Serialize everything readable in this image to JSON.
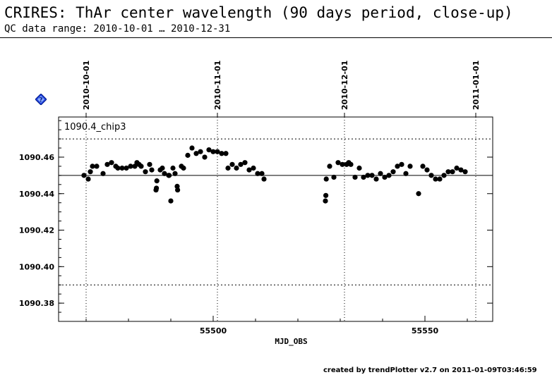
{
  "header": {
    "title": "CRIRES: ThAr center wavelength (90 days period, close-up)",
    "subtitle": "QC data range: 2010-10-01 … 2010-12-31"
  },
  "help_icon": "help-diamond-icon",
  "footer": {
    "text": "created by trendPlotter v2.7 on 2011-01-09T03:46:59"
  },
  "chart_data": {
    "type": "scatter",
    "panel_label": "1090.4_chip3",
    "xlabel": "MJD_OBS",
    "ylabel": "",
    "xlim": [
      55463.5,
      55566.0
    ],
    "ylim": [
      1090.37,
      1090.482
    ],
    "x_ticks": [
      55500,
      55550
    ],
    "y_ticks": [
      1090.38,
      1090.4,
      1090.42,
      1090.44,
      1090.46
    ],
    "y_tick_labels": [
      "1090.38",
      "1090.40",
      "1090.42",
      "1090.44",
      "1090.46"
    ],
    "reference_line": 1090.45,
    "threshold_lines": [
      1090.47,
      1090.39
    ],
    "date_markers": [
      {
        "mjd": 55470,
        "label": "2010-10-01"
      },
      {
        "mjd": 55501,
        "label": "2010-11-01"
      },
      {
        "mjd": 55531,
        "label": "2010-12-01"
      },
      {
        "mjd": 55562,
        "label": "2011-01-01"
      }
    ],
    "marker_color": "#000000",
    "grid": false,
    "x": [
      55469.5,
      55470.5,
      55471.0,
      55471.5,
      55472.5,
      55474.0,
      55475.0,
      55476.0,
      55477.0,
      55477.5,
      55478.5,
      55479.5,
      55480.5,
      55481.5,
      55482.0,
      55482.5,
      55483.0,
      55484.0,
      55485.0,
      55485.5,
      55486.5,
      55486.6,
      55486.7,
      55487.5,
      55488.0,
      55488.5,
      55489.5,
      55489.6,
      55490.0,
      55490.5,
      55491.0,
      55491.5,
      55491.6,
      55492.5,
      55493.0,
      55494.0,
      55495.0,
      55496.0,
      55497.0,
      55498.0,
      55499.0,
      55500.0,
      55501.0,
      55502.0,
      55503.0,
      55503.5,
      55504.5,
      55505.5,
      55506.5,
      55507.5,
      55508.5,
      55509.5,
      55510.5,
      55511.5,
      55512.0,
      55526.5,
      55526.6,
      55526.7,
      55527.5,
      55528.5,
      55529.5,
      55530.5,
      55531.5,
      55532.0,
      55532.5,
      55533.5,
      55534.5,
      55535.5,
      55536.5,
      55537.5,
      55538.5,
      55539.5,
      55540.5,
      55541.5,
      55542.5,
      55543.5,
      55544.5,
      55545.5,
      55546.5,
      55548.5,
      55549.5,
      55550.5,
      55551.5,
      55552.5,
      55553.5,
      55554.5,
      55555.5,
      55556.5,
      55557.5,
      55558.5,
      55559.5
    ],
    "y": [
      1090.45,
      1090.448,
      1090.452,
      1090.455,
      1090.455,
      1090.451,
      1090.456,
      1090.457,
      1090.455,
      1090.454,
      1090.454,
      1090.454,
      1090.455,
      1090.455,
      1090.457,
      1090.456,
      1090.455,
      1090.452,
      1090.456,
      1090.453,
      1090.442,
      1090.443,
      1090.447,
      1090.453,
      1090.454,
      1090.451,
      1090.45,
      1090.45,
      1090.436,
      1090.454,
      1090.451,
      1090.444,
      1090.442,
      1090.455,
      1090.454,
      1090.461,
      1090.465,
      1090.462,
      1090.463,
      1090.46,
      1090.464,
      1090.463,
      1090.463,
      1090.462,
      1090.462,
      1090.454,
      1090.456,
      1090.454,
      1090.456,
      1090.457,
      1090.453,
      1090.454,
      1090.451,
      1090.451,
      1090.448,
      1090.436,
      1090.439,
      1090.448,
      1090.455,
      1090.449,
      1090.457,
      1090.456,
      1090.456,
      1090.457,
      1090.456,
      1090.449,
      1090.454,
      1090.449,
      1090.45,
      1090.45,
      1090.448,
      1090.451,
      1090.449,
      1090.45,
      1090.452,
      1090.455,
      1090.456,
      1090.451,
      1090.455,
      1090.44,
      1090.455,
      1090.453,
      1090.45,
      1090.448,
      1090.448,
      1090.45,
      1090.452,
      1090.452,
      1090.454,
      1090.453,
      1090.452
    ]
  }
}
